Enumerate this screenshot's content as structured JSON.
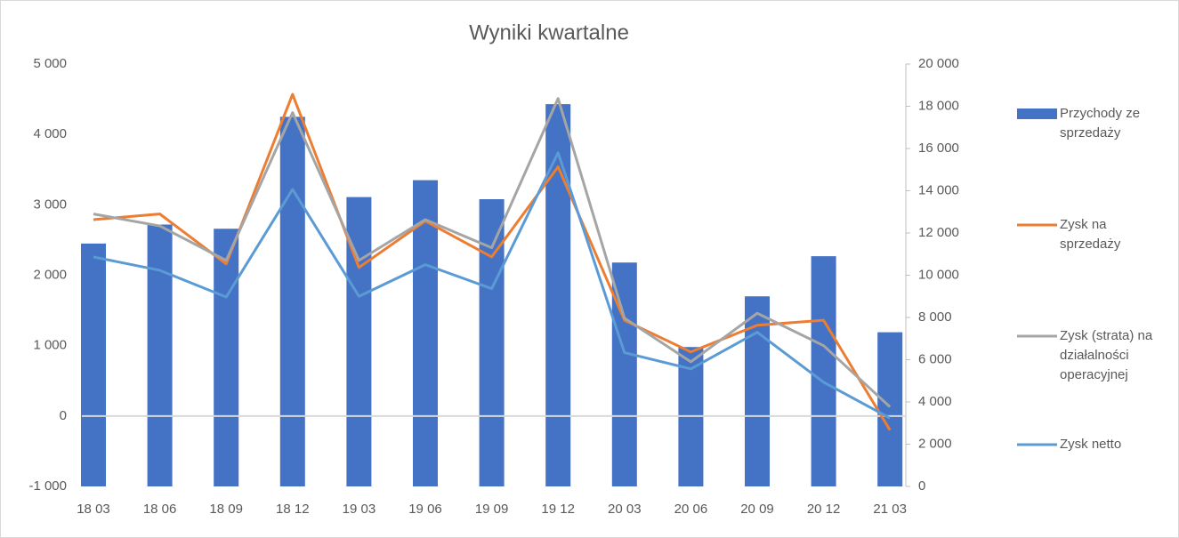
{
  "chart_data": {
    "type": "combo",
    "title": "Wyniki kwartalne",
    "categories": [
      "18 03",
      "18 06",
      "18 09",
      "18 12",
      "19 03",
      "19 06",
      "19 09",
      "19 12",
      "20 03",
      "20 06",
      "20 09",
      "20 12",
      "21 03"
    ],
    "series": [
      {
        "name": "Przychody ze sprzedaży",
        "type": "bar",
        "axis": "y2",
        "color": "#4472c4",
        "values": [
          11500,
          12400,
          12200,
          17500,
          13700,
          14500,
          13600,
          18100,
          10600,
          6600,
          9000,
          10900,
          7300
        ]
      },
      {
        "name": "Zysk na sprzedaży",
        "type": "line",
        "color": "#ed7d31",
        "values": [
          2790,
          2870,
          2160,
          4570,
          2110,
          2770,
          2260,
          3540,
          1360,
          910,
          1290,
          1360,
          -200
        ]
      },
      {
        "name": "Zysk (strata) na działalności operacyjnej",
        "type": "line",
        "color": "#a5a5a5",
        "values": [
          2870,
          2700,
          2210,
          4310,
          2210,
          2790,
          2390,
          4510,
          1390,
          770,
          1460,
          1000,
          130
        ]
      },
      {
        "name": "Zysk netto",
        "type": "line",
        "color": "#5b9bd5",
        "values": [
          2260,
          2070,
          1690,
          3220,
          1700,
          2150,
          1810,
          3740,
          900,
          670,
          1190,
          480,
          -30
        ]
      }
    ],
    "ylim": [
      -1000,
      5000
    ],
    "yticks": [
      {
        "value": -1000,
        "label": "-1 000"
      },
      0,
      {
        "value": 1000,
        "label": "1 000"
      },
      {
        "value": 2000,
        "label": "2 000"
      },
      {
        "value": 3000,
        "label": "3 000"
      },
      {
        "value": 4000,
        "label": "4 000"
      },
      {
        "value": 5000,
        "label": "5 000"
      }
    ],
    "y2lim": [
      0,
      20000
    ],
    "y2ticks": [
      0,
      {
        "value": 2000,
        "label": "2 000"
      },
      {
        "value": 4000,
        "label": "4 000"
      },
      {
        "value": 6000,
        "label": "6 000"
      },
      {
        "value": 8000,
        "label": "8 000"
      },
      {
        "value": 10000,
        "label": "10 000"
      },
      {
        "value": 12000,
        "label": "12 000"
      },
      {
        "value": 14000,
        "label": "14 000"
      },
      {
        "value": 16000,
        "label": "16 000"
      },
      {
        "value": 18000,
        "label": "18 000"
      },
      {
        "value": 20000,
        "label": "20 000"
      }
    ],
    "legend": "right"
  }
}
